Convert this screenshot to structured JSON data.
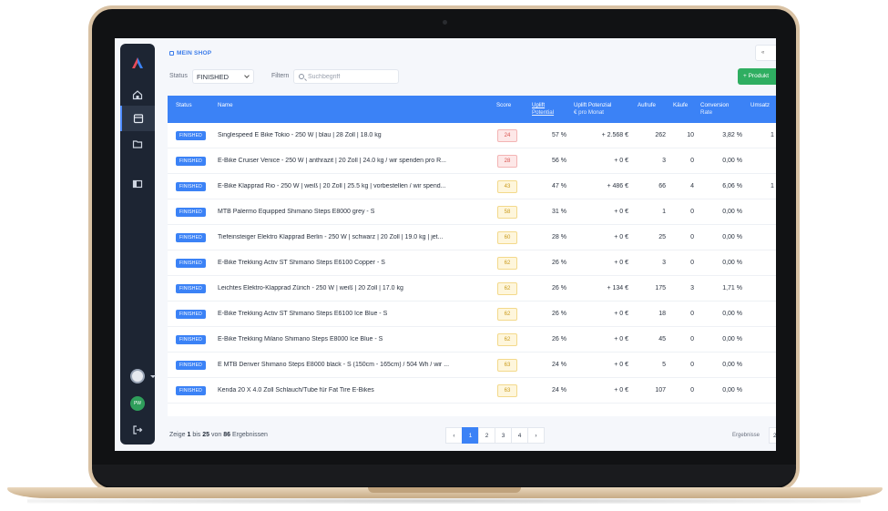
{
  "app": {
    "shop_link": "MEIN SHOP",
    "top_right_button": "«",
    "add_button": "+ Produkt"
  },
  "filters": {
    "status_label": "Status",
    "status_value": "FINISHED",
    "filter_label": "Filtern",
    "search_placeholder": "Suchbegriff"
  },
  "table": {
    "headers": {
      "status": "Status",
      "name": "Name",
      "score": "Score",
      "uplift_line1": "Uplift",
      "uplift_line2": "Potential",
      "uplift_pot_line1": "Uplift Potenzial",
      "uplift_pot_line2": "€ pro Monat",
      "aufrufe": "Aufrufe",
      "kaeufe": "Käufe",
      "conv_line1": "Conversion",
      "conv_line2": "Rate",
      "umsatz": "Umsatz"
    },
    "rows": [
      {
        "status": "FINISHED",
        "name": "Singlespeed E Bike Tokio - 250 W | blau | 28 Zoll | 18.0 kg",
        "score": "24",
        "uplift": "57 %",
        "uplift_eur": "+ 2.568 €",
        "aufrufe": "262",
        "kaeufe": "10",
        "conversion": "3,82 %",
        "umsatz": "1"
      },
      {
        "status": "FINISHED",
        "name": "E-Bike Cruiser Venice - 250 W | anthrazit | 20 Zoll | 24.0 kg / wir spenden pro R...",
        "score": "28",
        "uplift": "56 %",
        "uplift_eur": "+ 0 €",
        "aufrufe": "3",
        "kaeufe": "0",
        "conversion": "0,00 %",
        "umsatz": ""
      },
      {
        "status": "FINISHED",
        "name": "E-Bike Klapprad Rio - 250 W | weiß | 20 Zoll | 25.5 kg | vorbestellen / wir spend...",
        "score": "43",
        "uplift": "47 %",
        "uplift_eur": "+ 486 €",
        "aufrufe": "66",
        "kaeufe": "4",
        "conversion": "6,06 %",
        "umsatz": "1"
      },
      {
        "status": "FINISHED",
        "name": "MTB Palermo Equipped Shimano Steps E8000 grey - S",
        "score": "58",
        "uplift": "31 %",
        "uplift_eur": "+ 0 €",
        "aufrufe": "1",
        "kaeufe": "0",
        "conversion": "0,00 %",
        "umsatz": ""
      },
      {
        "status": "FINISHED",
        "name": "Tiefeinsteiger Elektro Klapprad Berlin - 250 W | schwarz | 20 Zoll | 19.0 kg | jet...",
        "score": "60",
        "uplift": "28 %",
        "uplift_eur": "+ 0 €",
        "aufrufe": "25",
        "kaeufe": "0",
        "conversion": "0,00 %",
        "umsatz": ""
      },
      {
        "status": "FINISHED",
        "name": "E-Bike Trekking Activ ST Shimano Steps E6100 Copper - S",
        "score": "62",
        "uplift": "26 %",
        "uplift_eur": "+ 0 €",
        "aufrufe": "3",
        "kaeufe": "0",
        "conversion": "0,00 %",
        "umsatz": ""
      },
      {
        "status": "FINISHED",
        "name": "Leichtes Elektro-Klapprad Zürich - 250 W | weiß | 20 Zoll | 17.0 kg",
        "score": "62",
        "uplift": "26 %",
        "uplift_eur": "+ 134 €",
        "aufrufe": "175",
        "kaeufe": "3",
        "conversion": "1,71 %",
        "umsatz": ""
      },
      {
        "status": "FINISHED",
        "name": "E-Bike Trekking Activ ST Shimano Steps E6100 Ice Blue - S",
        "score": "62",
        "uplift": "26 %",
        "uplift_eur": "+ 0 €",
        "aufrufe": "18",
        "kaeufe": "0",
        "conversion": "0,00 %",
        "umsatz": ""
      },
      {
        "status": "FINISHED",
        "name": "E-Bike Trekking Milano Shimano Steps E8000 Ice Blue - S",
        "score": "62",
        "uplift": "26 %",
        "uplift_eur": "+ 0 €",
        "aufrufe": "45",
        "kaeufe": "0",
        "conversion": "0,00 %",
        "umsatz": ""
      },
      {
        "status": "FINISHED",
        "name": "E MTB Denver Shimano Steps E8000 black - S (150cm - 165cm) / 504 Wh / wir ...",
        "score": "63",
        "uplift": "24 %",
        "uplift_eur": "+ 0 €",
        "aufrufe": "5",
        "kaeufe": "0",
        "conversion": "0,00 %",
        "umsatz": ""
      },
      {
        "status": "FINISHED",
        "name": "Kenda 20 X 4.0 Zoll Schlauch/Tube für Fat Tire E-Bikes",
        "score": "63",
        "uplift": "24 %",
        "uplift_eur": "+ 0 €",
        "aufrufe": "107",
        "kaeufe": "0",
        "conversion": "0,00 %",
        "umsatz": ""
      }
    ]
  },
  "footer": {
    "prefix": "Zeige",
    "from": "1",
    "bis": "bis",
    "to": "25",
    "von": "von",
    "total": "86",
    "suffix": "Ergebnissen",
    "pages": [
      "‹",
      "1",
      "2",
      "3",
      "4",
      "›"
    ],
    "active_page": "1",
    "results_label": "Ergebnisse",
    "results_value": "2"
  },
  "colors": {
    "accent": "#3b82f6",
    "sidebar": "#1d2533",
    "add_button": "#2fae61",
    "score_red_bg": "#fde8e8",
    "score_red_border": "#f3b4b4",
    "score_red_text": "#d9534f",
    "score_yellow_bg": "#fef6dc",
    "score_yellow_border": "#f3d98b",
    "score_yellow_text": "#c99a1c"
  }
}
